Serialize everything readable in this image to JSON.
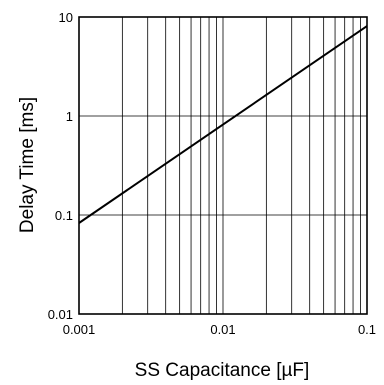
{
  "chart_data": {
    "type": "line",
    "title": "",
    "xlabel": "SS Capacitance [µF]",
    "ylabel": "Delay Time [ms]",
    "x_scale": "log",
    "y_scale": "log",
    "xlim": [
      0.001,
      0.1
    ],
    "ylim": [
      0.01,
      10
    ],
    "grid": true,
    "x_ticks": [
      {
        "value": 0.001,
        "label": "0.001"
      },
      {
        "value": 0.01,
        "label": "0.01"
      },
      {
        "value": 0.1,
        "label": "0.1"
      }
    ],
    "y_ticks": [
      {
        "value": 0.01,
        "label": "0.01"
      },
      {
        "value": 0.1,
        "label": "0.1"
      },
      {
        "value": 1,
        "label": "1"
      },
      {
        "value": 10,
        "label": "10"
      }
    ],
    "series": [
      {
        "x": [
          0.001,
          0.1
        ],
        "y": [
          0.083,
          8.1
        ],
        "color": "#000000"
      }
    ]
  }
}
